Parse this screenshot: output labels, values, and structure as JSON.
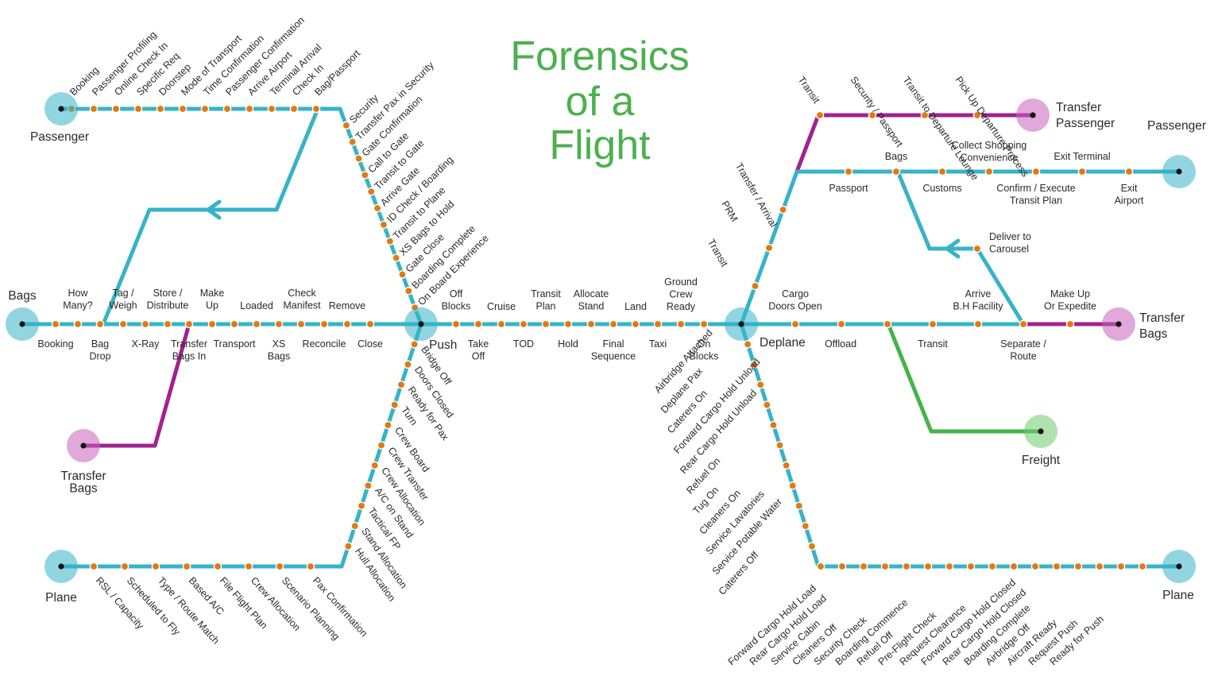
{
  "title_lines": [
    "Forensics",
    "of a",
    "Flight"
  ],
  "colors": {
    "main": "#36b3c8",
    "transfer": "#a0238f",
    "freight": "#45b349",
    "stop": "#e07a12",
    "title": "#4cb04f"
  },
  "terminals": {
    "passenger_left": "Passenger",
    "bags_left": "Bags",
    "transfer_bags_left": [
      "Transfer",
      "Bags"
    ],
    "plane_left": "Plane",
    "push": "Push",
    "deplane": "Deplane",
    "transfer_passenger_right": [
      "Transfer",
      "Passenger"
    ],
    "passenger_right": "Passenger",
    "transfer_bags_right": [
      "Transfer",
      "Bags"
    ],
    "freight": "Freight",
    "plane_right": "Plane"
  },
  "stations": {
    "passenger_line": [
      "Booking",
      "Passenger Profiling",
      "Online Check In",
      "Specific Req",
      "Doorstep",
      "Mode of Transport",
      "Time Confirmation",
      "Passenger Confirmation",
      "Arrive Airport",
      "Terminal Arrival",
      "Check In",
      "Bag/Passport"
    ],
    "security_line": [
      "Security",
      "Transfer Pax in Security",
      "Gate Confirmation",
      "Call to Gate",
      "Transit to Gate",
      "Arrive Gate",
      "ID Check / Boarding",
      "Transit to Plane",
      "XS Bags to Hold",
      "Gate Close",
      "Boarding Complete",
      "On Board Experience"
    ],
    "bags_top": [
      [
        "How",
        "Many?"
      ],
      [
        "Tag /",
        "Weigh"
      ],
      [
        "Store /",
        "Distribute"
      ],
      [
        "Make",
        "Up"
      ],
      [
        "Loaded"
      ],
      [
        "Check",
        "Manifest"
      ],
      [
        "Remove"
      ]
    ],
    "bags_bottom": [
      [
        "Booking"
      ],
      [
        "Bag",
        "Drop"
      ],
      [
        "X-Ray"
      ],
      [
        "Transfer",
        "Bags In"
      ],
      [
        "Transport"
      ],
      [
        "XS",
        "Bags"
      ],
      [
        "Reconcile"
      ],
      [
        "Close"
      ]
    ],
    "flight_top": [
      [
        "Off",
        "Blocks"
      ],
      [
        "Cruise"
      ],
      [
        "Transit",
        "Plan"
      ],
      [
        "Allocate",
        "Stand"
      ],
      [
        "Land"
      ],
      [
        "Ground",
        "Crew",
        "Ready"
      ]
    ],
    "flight_bottom": [
      [
        "Take",
        "Off"
      ],
      [
        "TOD"
      ],
      [
        "Hold"
      ],
      [
        "Final",
        "Sequence"
      ],
      [
        "Taxi"
      ],
      [
        "On",
        "Blocks"
      ]
    ],
    "turnaround_line": [
      "Bridge Off",
      "Doors Closed",
      "Ready for Pax",
      "Turn",
      "Crew Board",
      "Crew Transfer",
      "Crew Allocation",
      "A/C on Stand",
      "Tactical FP",
      "Stand Allocation",
      "Hull Allocation"
    ],
    "plane_line_left": [
      "RSL / Capacity",
      "Scheduled to Fly",
      "Type / Route Match",
      "Based A/C",
      "File Flight Plan",
      "Crew Allocation",
      "Scenario Planning",
      "Pax Confirmation"
    ],
    "arrival_line": [
      "Transit",
      "PRM",
      "Transfer / Arrival"
    ],
    "transfer_pax_line": [
      "Transit",
      "Security / Passport",
      "Transit to Departure Lounge",
      "Pick Up Departure Process"
    ],
    "passenger_exit_top": [
      [
        "Bags"
      ],
      [
        "Collect Shopping",
        "Convenience"
      ],
      [
        "Exit Terminal"
      ]
    ],
    "passenger_exit_bottom": [
      [
        "Passport"
      ],
      [
        "Customs"
      ],
      [
        "Confirm / Execute",
        "Transit Plan"
      ],
      [
        "Exit",
        "Airport"
      ]
    ],
    "deliver_to_carousel": [
      "Deliver to",
      "Carousel"
    ],
    "bags_right_top": [
      [
        "Cargo",
        "Doors Open"
      ],
      [
        "Arrive",
        "B.H Facility"
      ],
      [
        "Make Up",
        "Or Expedite"
      ]
    ],
    "bags_right_bottom": [
      [
        "Offload"
      ],
      [
        "Transit"
      ],
      [
        "Separate /",
        "Route"
      ]
    ],
    "ground_ops_line": [
      "Airbridge Attached",
      "Deplane Pax",
      "Caterers On",
      "Forward Cargo Hold Unload",
      "Rear Cargo Hold Unload",
      "Refuel On",
      "Tug On",
      "Cleaners On",
      "Service Lavatories",
      "Service Potable Water",
      "Caterers Off"
    ],
    "plane_line_right": [
      "Forward Cargo Hold Load",
      "Rear Cargo Hold Load",
      "Service Cabin",
      "Cleaners Off",
      "Security Check",
      "Boarding Commence",
      "Refuel Off",
      "Pre-Flight Check",
      "Request Clearance",
      "Forward Cargo Hold Closed",
      "Rear Cargo Hold Closed",
      "Boarding Complete",
      "Airbridge Off",
      "Aircraft Ready",
      "Request Push",
      "Ready for Push"
    ]
  }
}
